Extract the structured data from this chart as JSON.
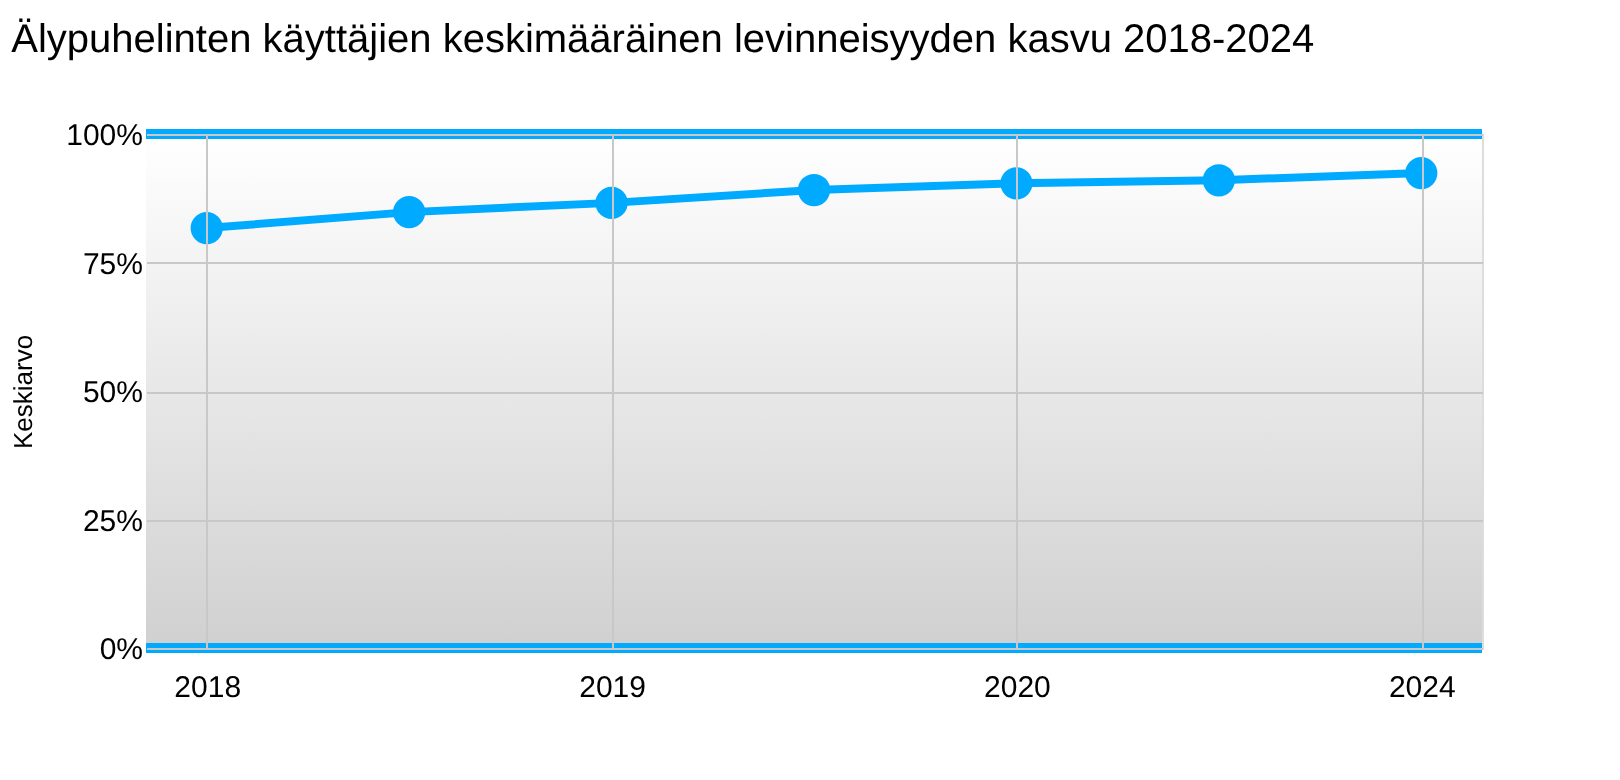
{
  "chart_data": {
    "type": "line",
    "title": "Älypuhelinten käyttäjien keskimääräinen levinneisyyden kasvu 2018-2024",
    "ylabel": "Keskiarvo",
    "categories": [
      "2018",
      null,
      "2019",
      null,
      "2020",
      null,
      "2024"
    ],
    "series": [
      {
        "color": "#00aaff",
        "values": [
          81.7,
          84.8,
          86.6,
          89.1,
          90.4,
          91.0,
          92.4
        ]
      }
    ],
    "ylim": [
      0,
      100
    ],
    "yticks": [
      {
        "value": 0,
        "label": "0%"
      },
      {
        "value": 25,
        "label": "25%"
      },
      {
        "value": 50,
        "label": "50%"
      },
      {
        "value": 75,
        "label": "75%"
      },
      {
        "value": 100,
        "label": "100%"
      }
    ],
    "grid": true,
    "marker": "circle",
    "line_style": "solid"
  }
}
